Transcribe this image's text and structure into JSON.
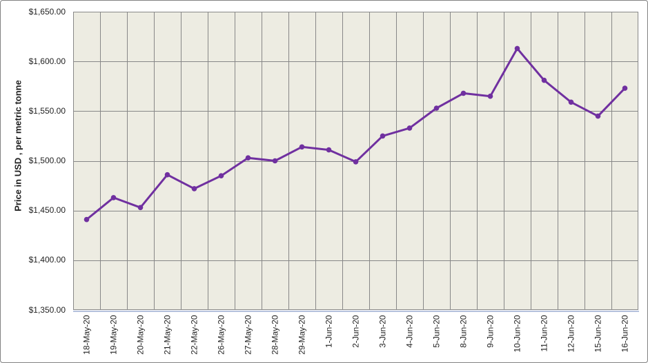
{
  "chart_data": {
    "type": "line",
    "title": "",
    "xlabel": "",
    "ylabel": "Price in USD , per metric tonne",
    "categories": [
      "18-May-20",
      "19-May-20",
      "20-May-20",
      "21-May-20",
      "22-May-20",
      "26-May-20",
      "27-May-20",
      "28-May-20",
      "29-May-20",
      "1-Jun-20",
      "2-Jun-20",
      "3-Jun-20",
      "4-Jun-20",
      "5-Jun-20",
      "8-Jun-20",
      "9-Jun-20",
      "10-Jun-20",
      "11-Jun-20",
      "12-Jun-20",
      "15-Jun-20",
      "16-Jun-20"
    ],
    "values": [
      1441,
      1463,
      1453,
      1486,
      1472,
      1485,
      1503,
      1500,
      1514,
      1511,
      1499,
      1525,
      1533,
      1553,
      1568,
      1565,
      1613,
      1581,
      1559,
      1545,
      1573
    ],
    "ylim": [
      1350,
      1650
    ],
    "y_tick_values": [
      1650,
      1600,
      1550,
      1500,
      1450,
      1400,
      1350
    ],
    "y_tick_labels": [
      "$1,650.00",
      "$1,600.00",
      "$1,550.00",
      "$1,500.00",
      "$1,450.00",
      "$1,400.00",
      "$1,350.00"
    ],
    "grid": true,
    "legend_position": "none",
    "marker_style": "circle",
    "colors": {
      "line": "#7030A0",
      "marker": "#7030A0",
      "plot_background": "#EDECE2",
      "gridline": "#878787",
      "plot_border": "#878787",
      "x_axis_line": "#B5C2DD",
      "label_text": "#1F1F1F",
      "chart_border": "#808080",
      "chart_background": "#FFFFFF"
    }
  }
}
